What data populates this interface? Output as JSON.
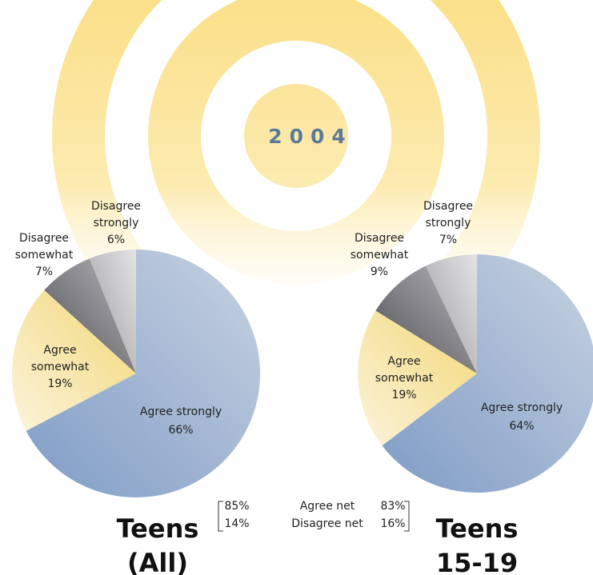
{
  "title": "2004",
  "net_labels": [
    "Agree net",
    "Disagree net"
  ],
  "chart_data": [
    {
      "type": "pie",
      "title": "Teens (All)",
      "categories": [
        "Agree strongly",
        "Agree somewhat",
        "Disagree somewhat",
        "Disagree strongly"
      ],
      "values": [
        66,
        19,
        7,
        6
      ],
      "value_labels": [
        "66%",
        "19%",
        "7%",
        "6%"
      ],
      "colors": [
        "#9fb3d4",
        "#f3dc86",
        "#77777c",
        "#c4c4c6"
      ],
      "net_values": [
        85,
        14
      ],
      "net_value_labels": [
        "85%",
        "14%"
      ]
    },
    {
      "type": "pie",
      "title": "Teens 15-19",
      "categories": [
        "Agree strongly",
        "Agree somewhat",
        "Disagree somewhat",
        "Disagree strongly"
      ],
      "values": [
        64,
        19,
        9,
        7
      ],
      "value_labels": [
        "64%",
        "19%",
        "9%",
        "7%"
      ],
      "colors": [
        "#9fb3d4",
        "#f3dc86",
        "#77777c",
        "#c4c4c6"
      ],
      "net_values": [
        83,
        16
      ],
      "net_value_labels": [
        "83%",
        "16%"
      ]
    }
  ]
}
